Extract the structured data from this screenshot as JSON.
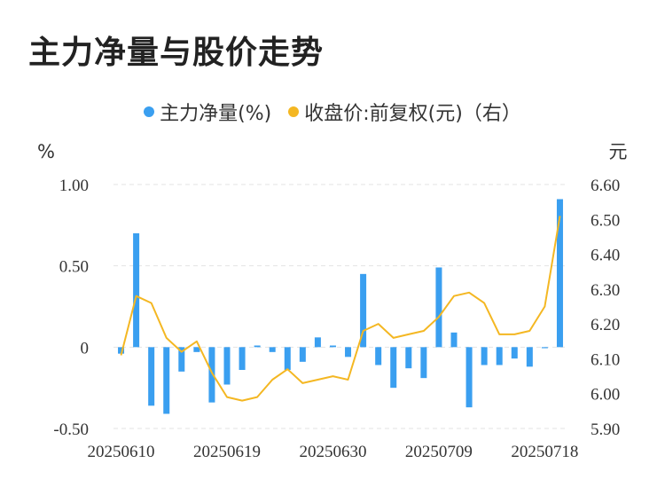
{
  "title": "主力净量与股价走势",
  "legend": [
    {
      "label": "主力净量(%)",
      "color": "#3a9ff0"
    },
    {
      "label": "收盘价:前复权(元)（右）",
      "color": "#f4b722"
    }
  ],
  "chart_data": {
    "type": "bar+line",
    "title": "主力净量与股价走势",
    "left_unit": "%",
    "right_unit": "元",
    "left_axis": {
      "min": -0.5,
      "max": 1.0,
      "ticks": [
        "-0.50",
        "0",
        "0.50",
        "1.00"
      ],
      "tick_values": [
        -0.5,
        0,
        0.5,
        1.0
      ]
    },
    "right_axis": {
      "min": 5.9,
      "max": 6.6,
      "ticks": [
        "5.90",
        "6.00",
        "6.10",
        "6.20",
        "6.30",
        "6.40",
        "6.50",
        "6.60"
      ],
      "tick_values": [
        5.9,
        6.0,
        6.1,
        6.2,
        6.3,
        6.4,
        6.5,
        6.6
      ]
    },
    "x_tick_labels": [
      "20250610",
      "20250619",
      "20250630",
      "20250709",
      "20250718"
    ],
    "x_tick_index": [
      0,
      7,
      14,
      21,
      28
    ],
    "series": [
      {
        "name": "主力净量(%)",
        "type": "bar",
        "axis": "left",
        "color": "#3a9ff0",
        "values": [
          -0.04,
          0.7,
          -0.36,
          -0.41,
          -0.15,
          -0.03,
          -0.34,
          -0.23,
          -0.14,
          0.01,
          -0.03,
          -0.14,
          -0.09,
          0.06,
          0.01,
          -0.06,
          0.45,
          -0.11,
          -0.25,
          -0.13,
          -0.19,
          0.49,
          0.09,
          -0.37,
          -0.11,
          -0.11,
          -0.07,
          -0.12,
          0.0,
          0.91
        ]
      },
      {
        "name": "收盘价:前复权(元)（右）",
        "type": "line",
        "axis": "right",
        "color": "#f4b722",
        "values": [
          6.11,
          6.28,
          6.26,
          6.16,
          6.12,
          6.15,
          6.06,
          5.99,
          5.98,
          5.99,
          6.04,
          6.07,
          6.03,
          6.04,
          6.05,
          6.04,
          6.18,
          6.2,
          6.16,
          6.17,
          6.18,
          6.22,
          6.28,
          6.29,
          6.26,
          6.17,
          6.17,
          6.18,
          6.25,
          6.51
        ]
      }
    ]
  }
}
